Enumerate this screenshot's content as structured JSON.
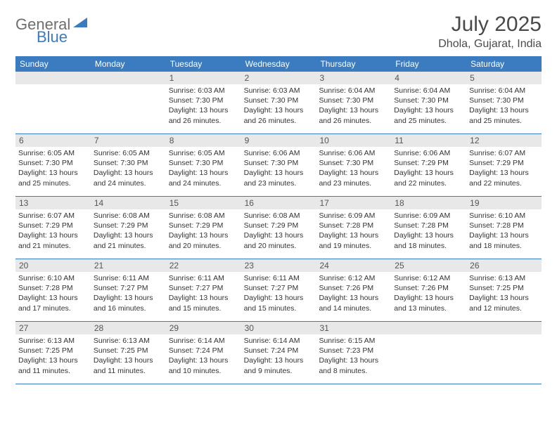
{
  "logo": {
    "text1": "General",
    "text2": "Blue",
    "text_color": "#6e6e6e",
    "blue_color": "#3b7bbf"
  },
  "title": {
    "month": "July 2025",
    "location": "Dhola, Gujarat, India",
    "fontsize_month": 30,
    "fontsize_location": 16,
    "color": "#4a4a4a"
  },
  "header_row": {
    "bg_color": "#3b7bbf",
    "text_color": "#ffffff",
    "days": [
      "Sunday",
      "Monday",
      "Tuesday",
      "Wednesday",
      "Thursday",
      "Friday",
      "Saturday"
    ]
  },
  "day_number_bg": "#e8e8e8",
  "border_color": "#3b7bbf",
  "content_fontsize": 10.5,
  "weeks": [
    [
      null,
      null,
      {
        "n": "1",
        "sunrise": "Sunrise: 6:03 AM",
        "sunset": "Sunset: 7:30 PM",
        "daylight": "Daylight: 13 hours and 26 minutes."
      },
      {
        "n": "2",
        "sunrise": "Sunrise: 6:03 AM",
        "sunset": "Sunset: 7:30 PM",
        "daylight": "Daylight: 13 hours and 26 minutes."
      },
      {
        "n": "3",
        "sunrise": "Sunrise: 6:04 AM",
        "sunset": "Sunset: 7:30 PM",
        "daylight": "Daylight: 13 hours and 26 minutes."
      },
      {
        "n": "4",
        "sunrise": "Sunrise: 6:04 AM",
        "sunset": "Sunset: 7:30 PM",
        "daylight": "Daylight: 13 hours and 25 minutes."
      },
      {
        "n": "5",
        "sunrise": "Sunrise: 6:04 AM",
        "sunset": "Sunset: 7:30 PM",
        "daylight": "Daylight: 13 hours and 25 minutes."
      }
    ],
    [
      {
        "n": "6",
        "sunrise": "Sunrise: 6:05 AM",
        "sunset": "Sunset: 7:30 PM",
        "daylight": "Daylight: 13 hours and 25 minutes."
      },
      {
        "n": "7",
        "sunrise": "Sunrise: 6:05 AM",
        "sunset": "Sunset: 7:30 PM",
        "daylight": "Daylight: 13 hours and 24 minutes."
      },
      {
        "n": "8",
        "sunrise": "Sunrise: 6:05 AM",
        "sunset": "Sunset: 7:30 PM",
        "daylight": "Daylight: 13 hours and 24 minutes."
      },
      {
        "n": "9",
        "sunrise": "Sunrise: 6:06 AM",
        "sunset": "Sunset: 7:30 PM",
        "daylight": "Daylight: 13 hours and 23 minutes."
      },
      {
        "n": "10",
        "sunrise": "Sunrise: 6:06 AM",
        "sunset": "Sunset: 7:30 PM",
        "daylight": "Daylight: 13 hours and 23 minutes."
      },
      {
        "n": "11",
        "sunrise": "Sunrise: 6:06 AM",
        "sunset": "Sunset: 7:29 PM",
        "daylight": "Daylight: 13 hours and 22 minutes."
      },
      {
        "n": "12",
        "sunrise": "Sunrise: 6:07 AM",
        "sunset": "Sunset: 7:29 PM",
        "daylight": "Daylight: 13 hours and 22 minutes."
      }
    ],
    [
      {
        "n": "13",
        "sunrise": "Sunrise: 6:07 AM",
        "sunset": "Sunset: 7:29 PM",
        "daylight": "Daylight: 13 hours and 21 minutes."
      },
      {
        "n": "14",
        "sunrise": "Sunrise: 6:08 AM",
        "sunset": "Sunset: 7:29 PM",
        "daylight": "Daylight: 13 hours and 21 minutes."
      },
      {
        "n": "15",
        "sunrise": "Sunrise: 6:08 AM",
        "sunset": "Sunset: 7:29 PM",
        "daylight": "Daylight: 13 hours and 20 minutes."
      },
      {
        "n": "16",
        "sunrise": "Sunrise: 6:08 AM",
        "sunset": "Sunset: 7:29 PM",
        "daylight": "Daylight: 13 hours and 20 minutes."
      },
      {
        "n": "17",
        "sunrise": "Sunrise: 6:09 AM",
        "sunset": "Sunset: 7:28 PM",
        "daylight": "Daylight: 13 hours and 19 minutes."
      },
      {
        "n": "18",
        "sunrise": "Sunrise: 6:09 AM",
        "sunset": "Sunset: 7:28 PM",
        "daylight": "Daylight: 13 hours and 18 minutes."
      },
      {
        "n": "19",
        "sunrise": "Sunrise: 6:10 AM",
        "sunset": "Sunset: 7:28 PM",
        "daylight": "Daylight: 13 hours and 18 minutes."
      }
    ],
    [
      {
        "n": "20",
        "sunrise": "Sunrise: 6:10 AM",
        "sunset": "Sunset: 7:28 PM",
        "daylight": "Daylight: 13 hours and 17 minutes."
      },
      {
        "n": "21",
        "sunrise": "Sunrise: 6:11 AM",
        "sunset": "Sunset: 7:27 PM",
        "daylight": "Daylight: 13 hours and 16 minutes."
      },
      {
        "n": "22",
        "sunrise": "Sunrise: 6:11 AM",
        "sunset": "Sunset: 7:27 PM",
        "daylight": "Daylight: 13 hours and 15 minutes."
      },
      {
        "n": "23",
        "sunrise": "Sunrise: 6:11 AM",
        "sunset": "Sunset: 7:27 PM",
        "daylight": "Daylight: 13 hours and 15 minutes."
      },
      {
        "n": "24",
        "sunrise": "Sunrise: 6:12 AM",
        "sunset": "Sunset: 7:26 PM",
        "daylight": "Daylight: 13 hours and 14 minutes."
      },
      {
        "n": "25",
        "sunrise": "Sunrise: 6:12 AM",
        "sunset": "Sunset: 7:26 PM",
        "daylight": "Daylight: 13 hours and 13 minutes."
      },
      {
        "n": "26",
        "sunrise": "Sunrise: 6:13 AM",
        "sunset": "Sunset: 7:25 PM",
        "daylight": "Daylight: 13 hours and 12 minutes."
      }
    ],
    [
      {
        "n": "27",
        "sunrise": "Sunrise: 6:13 AM",
        "sunset": "Sunset: 7:25 PM",
        "daylight": "Daylight: 13 hours and 11 minutes."
      },
      {
        "n": "28",
        "sunrise": "Sunrise: 6:13 AM",
        "sunset": "Sunset: 7:25 PM",
        "daylight": "Daylight: 13 hours and 11 minutes."
      },
      {
        "n": "29",
        "sunrise": "Sunrise: 6:14 AM",
        "sunset": "Sunset: 7:24 PM",
        "daylight": "Daylight: 13 hours and 10 minutes."
      },
      {
        "n": "30",
        "sunrise": "Sunrise: 6:14 AM",
        "sunset": "Sunset: 7:24 PM",
        "daylight": "Daylight: 13 hours and 9 minutes."
      },
      {
        "n": "31",
        "sunrise": "Sunrise: 6:15 AM",
        "sunset": "Sunset: 7:23 PM",
        "daylight": "Daylight: 13 hours and 8 minutes."
      },
      null,
      null
    ]
  ]
}
